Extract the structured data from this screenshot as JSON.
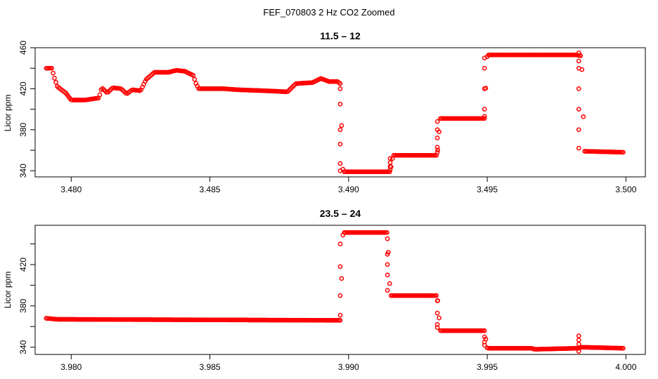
{
  "figure": {
    "title": "FEF_070803  2 Hz CO2 Zoomed"
  },
  "colors": {
    "points": "#ff0000",
    "axes": "#000000",
    "background": "#ffffff"
  },
  "chart_data": [
    {
      "type": "scatter",
      "title": "11.5 – 12",
      "xlabel": "",
      "ylabel": "Licor ppm",
      "xlim": [
        3.4787,
        3.5007
      ],
      "ylim": [
        334,
        460
      ],
      "xticks": [
        3.48,
        3.485,
        3.49,
        3.495,
        3.5
      ],
      "xtick_labels": [
        "3.480",
        "3.485",
        "3.490",
        "3.495",
        "3.500"
      ],
      "yticks": [
        340,
        360,
        380,
        400,
        420,
        440,
        460
      ],
      "ytick_labels": [
        "340",
        "",
        "380",
        "",
        "420",
        "",
        "460"
      ],
      "marker": "open circle",
      "grid": false,
      "legend": "none",
      "profile": [
        [
          3.4791,
          440
        ],
        [
          3.4793,
          440
        ],
        [
          3.4794,
          430
        ],
        [
          3.4795,
          422
        ],
        [
          3.4798,
          416
        ],
        [
          3.48,
          409
        ],
        [
          3.4805,
          409
        ],
        [
          3.481,
          411
        ],
        [
          3.4811,
          421
        ],
        [
          3.4813,
          416
        ],
        [
          3.4815,
          421
        ],
        [
          3.4818,
          420
        ],
        [
          3.482,
          415
        ],
        [
          3.4822,
          419
        ],
        [
          3.4825,
          418
        ],
        [
          3.4827,
          429
        ],
        [
          3.483,
          436
        ],
        [
          3.4835,
          436
        ],
        [
          3.4838,
          438
        ],
        [
          3.4841,
          437
        ],
        [
          3.4844,
          433
        ],
        [
          3.4845,
          425
        ],
        [
          3.4846,
          420
        ],
        [
          3.4855,
          420
        ],
        [
          3.486,
          419
        ],
        [
          3.487,
          418
        ],
        [
          3.4878,
          417
        ],
        [
          3.4881,
          425
        ],
        [
          3.4887,
          426
        ],
        [
          3.489,
          430
        ],
        [
          3.4893,
          427
        ],
        [
          3.4896,
          427
        ],
        [
          3.4897,
          425
        ],
        [
          3.4898,
          339
        ],
        [
          3.4915,
          339
        ],
        [
          3.4916,
          355
        ],
        [
          3.4932,
          355
        ],
        [
          3.4933,
          391
        ],
        [
          3.4949,
          391
        ],
        [
          3.495,
          453
        ],
        [
          3.4982,
          453
        ],
        [
          3.4984,
          452
        ],
        [
          3.4985,
          359
        ],
        [
          3.4999,
          358
        ]
      ],
      "transitions": [
        [
          3.4897,
          [
            420,
            405,
            380,
            366,
            347,
            340
          ]
        ],
        [
          3.4915,
          [
            341,
            344,
            348,
            352
          ]
        ],
        [
          3.4932,
          [
            358,
            363,
            372,
            380,
            388
          ]
        ],
        [
          3.4949,
          [
            393,
            400,
            420,
            440,
            450
          ]
        ],
        [
          3.4983,
          [
            455,
            447,
            440,
            420,
            400,
            380,
            362
          ]
        ]
      ]
    },
    {
      "type": "scatter",
      "title": "23.5 – 24",
      "xlabel": "",
      "ylabel": "Licor ppm",
      "xlim": [
        3.9787,
        4.0007
      ],
      "ylim": [
        333,
        458
      ],
      "xticks": [
        3.98,
        3.985,
        3.99,
        3.995,
        4.0
      ],
      "xtick_labels": [
        "3.980",
        "3.985",
        "3.990",
        "3.995",
        "4.000"
      ],
      "yticks": [
        340,
        360,
        380,
        400,
        420,
        440
      ],
      "ytick_labels": [
        "340",
        "",
        "380",
        "",
        "420",
        ""
      ],
      "marker": "open circle",
      "grid": false,
      "legend": "none",
      "profile": [
        [
          3.9791,
          368
        ],
        [
          3.9795,
          367
        ],
        [
          3.9897,
          366
        ],
        [
          3.9898,
          451
        ],
        [
          3.9914,
          451
        ],
        [
          3.9915,
          390
        ],
        [
          3.9932,
          390
        ],
        [
          3.9933,
          356
        ],
        [
          3.9949,
          356
        ],
        [
          3.995,
          339
        ],
        [
          3.9966,
          339
        ],
        [
          3.9967,
          338
        ],
        [
          3.9983,
          339
        ],
        [
          3.9984,
          340
        ],
        [
          3.9999,
          339
        ]
      ],
      "transitions": [
        [
          3.9897,
          [
            371,
            390,
            418,
            440
          ]
        ],
        [
          3.9914,
          [
            445,
            430,
            420,
            410,
            395
          ]
        ],
        [
          3.9932,
          [
            385,
            373,
            362,
            359
          ]
        ],
        [
          3.9949,
          [
            350,
            345,
            342
          ]
        ],
        [
          3.9983,
          [
            351,
            347,
            343,
            336
          ]
        ]
      ]
    }
  ]
}
